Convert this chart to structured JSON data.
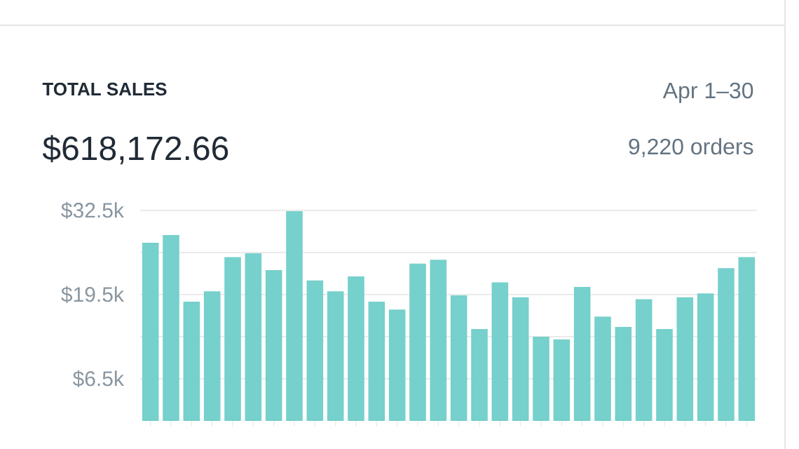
{
  "chart_data": {
    "type": "bar",
    "title": "TOTAL SALES",
    "subtitle": "$618,172.66",
    "annotations": [
      "Apr 1–30",
      "9,220 orders"
    ],
    "categories": [
      null,
      null,
      null,
      null,
      null,
      null,
      null,
      null,
      null,
      null,
      null,
      null,
      null,
      null,
      null,
      null,
      null,
      null,
      null,
      null,
      null,
      null,
      null,
      null,
      null,
      null,
      null,
      null,
      null,
      null
    ],
    "values": [
      27500,
      28700,
      18400,
      20000,
      25300,
      25900,
      23300,
      32400,
      21700,
      20000,
      22300,
      18400,
      17200,
      24300,
      24900,
      19400,
      14200,
      21400,
      19100,
      13000,
      12600,
      20700,
      16100,
      14500,
      18800,
      14200,
      19100,
      19700,
      23600,
      25300
    ],
    "color": "#76d0cb",
    "ylim": [
      0,
      32500
    ],
    "yticks": [
      {
        "value": 6500,
        "label": "$6.5k"
      },
      {
        "value": 13000,
        "label": null
      },
      {
        "value": 19500,
        "label": "$19.5k"
      },
      {
        "value": 26000,
        "label": null
      },
      {
        "value": 32500,
        "label": "$32.5k"
      }
    ],
    "grid": "y"
  }
}
